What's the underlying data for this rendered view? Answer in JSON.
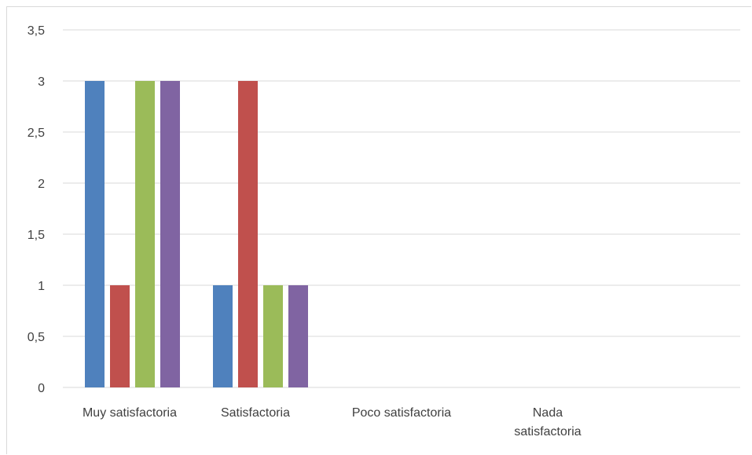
{
  "chart_data": {
    "type": "bar",
    "title": "",
    "xlabel": "",
    "ylabel": "",
    "ylim": [
      0,
      3.5
    ],
    "ytick_step": 0.5,
    "grid": true,
    "legend": "none",
    "categories": [
      "Muy satisfactoria",
      "Satisfactoria",
      "Poco satisfactoria",
      "Nada satisfactoria"
    ],
    "category_lines": [
      [
        "Muy satisfactoria"
      ],
      [
        "Satisfactoria"
      ],
      [
        "Poco satisfactoria"
      ],
      [
        "Nada",
        "satisfactoria"
      ]
    ],
    "yticks": [
      "0",
      "0,5",
      "1",
      "1,5",
      "2",
      "2,5",
      "3",
      "3,5"
    ],
    "series": [
      {
        "color": "#4f81bd",
        "values": [
          3,
          1,
          0,
          0
        ]
      },
      {
        "color": "#c0504d",
        "values": [
          1,
          3,
          0,
          0
        ]
      },
      {
        "color": "#9bbb59",
        "values": [
          3,
          1,
          0,
          0
        ]
      },
      {
        "color": "#8064a2",
        "values": [
          3,
          1,
          0,
          0
        ]
      }
    ]
  }
}
